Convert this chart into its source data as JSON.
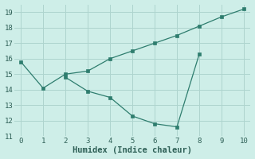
{
  "line1_x": [
    0,
    1,
    2,
    3,
    4,
    5,
    6,
    7,
    8,
    9,
    10
  ],
  "line1_y": [
    15.8,
    14.1,
    15.0,
    15.2,
    16.0,
    16.5,
    17.0,
    17.5,
    18.1,
    18.7,
    19.2
  ],
  "line2_x": [
    2,
    3,
    4,
    5,
    6,
    7,
    8
  ],
  "line2_y": [
    14.8,
    13.9,
    13.5,
    12.3,
    11.8,
    11.6,
    16.3
  ],
  "line_color": "#2e7d6e",
  "marker": "s",
  "marker_size": 2.5,
  "bg_color": "#ceeee8",
  "grid_color": "#aed4ce",
  "xlabel": "Humidex (Indice chaleur)",
  "xlim": [
    -0.3,
    10.3
  ],
  "ylim": [
    11,
    19.5
  ],
  "yticks": [
    11,
    12,
    13,
    14,
    15,
    16,
    17,
    18,
    19
  ],
  "xticks": [
    0,
    1,
    2,
    3,
    4,
    5,
    6,
    7,
    8,
    9,
    10
  ],
  "font_color": "#2e5f56",
  "label_fontsize": 7.5,
  "tick_fontsize": 6.5
}
